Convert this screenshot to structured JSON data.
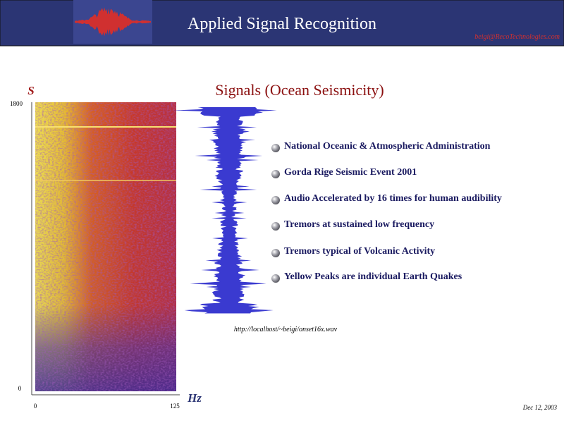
{
  "header": {
    "title": "Applied Signal Recognition",
    "email": "beigi@RecoTechnologies.com"
  },
  "slide": {
    "title": "Signals (Ocean Seismicity)",
    "bullets": [
      "National Oceanic & Atmospheric Administration",
      "Gorda Rige Seismic Event 2001",
      "Audio Accelerated by 16 times for human audibility",
      "Tremors at sustained low frequency",
      "Tremors typical of Volcanic Activity",
      "Yellow Peaks are individual Earth Quakes"
    ],
    "url": "http://localhost/~beigi/onset16x.wav"
  },
  "spectrogram": {
    "y_axis_label": "S",
    "x_axis_label": "Hz",
    "y_ticks": [
      "1800",
      "0"
    ],
    "x_ticks": [
      "0",
      "125"
    ]
  },
  "footer": {
    "date": "Dec 12, 2003"
  }
}
